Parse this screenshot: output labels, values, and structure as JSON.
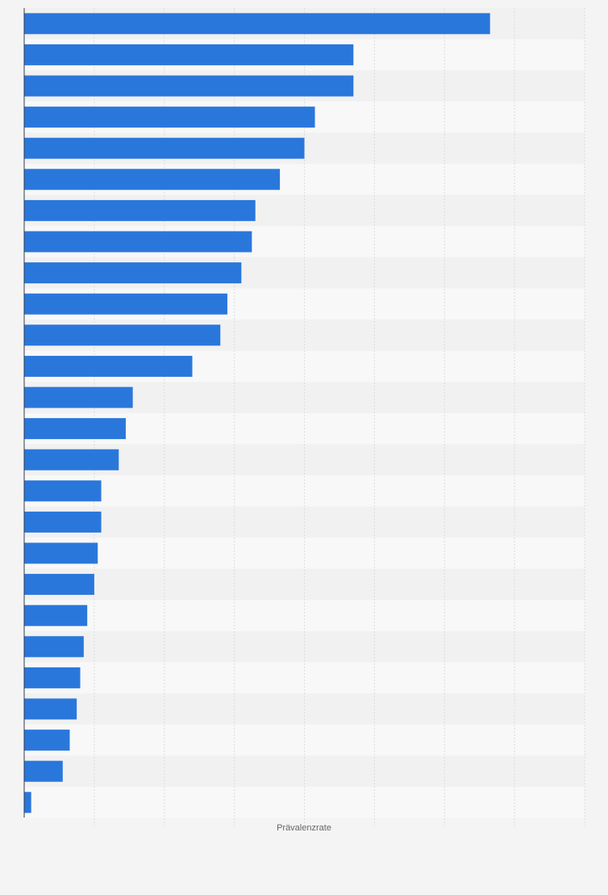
{
  "chart_data": {
    "type": "bar",
    "orientation": "horizontal",
    "title": "",
    "xlabel": "Prävalenzrate",
    "ylabel": "",
    "categories": [
      "",
      "",
      "",
      "",
      "",
      "",
      "",
      "",
      "",
      "",
      "",
      "",
      "",
      "",
      "",
      "",
      "",
      "",
      "",
      "",
      "",
      "",
      "",
      "",
      "",
      ""
    ],
    "values": [
      13.3,
      9.4,
      9.4,
      8.3,
      8.0,
      7.3,
      6.6,
      6.5,
      6.2,
      5.8,
      5.6,
      4.8,
      3.1,
      2.9,
      2.7,
      2.2,
      2.2,
      2.1,
      2.0,
      1.8,
      1.7,
      1.6,
      1.5,
      1.3,
      1.1,
      0.2
    ],
    "xlim": [
      0,
      16
    ],
    "grid": true,
    "legend": "none",
    "bar_color": "#2a77dc"
  }
}
